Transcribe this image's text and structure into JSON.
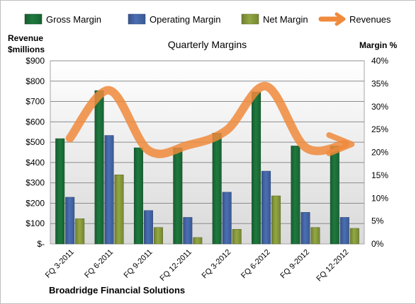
{
  "chart_data": {
    "type": "bar",
    "title": "Quarterly Margins",
    "company": "Broadridge Financial Solutions",
    "left_axis_label": [
      "Revenue",
      "$millions"
    ],
    "right_axis_label": "Margin %",
    "categories": [
      "FQ 3-2011",
      "FQ 6-2011",
      "FQ 9-2011",
      "FQ 12-2011",
      "FQ 3-2012",
      "FQ 6-2012",
      "FQ 9-2012",
      "FQ 12-2012"
    ],
    "left_ticks": [
      "$-",
      "$100",
      "$200",
      "$300",
      "$400",
      "$500",
      "$600",
      "$700",
      "$800",
      "$900"
    ],
    "right_ticks": [
      "0%",
      "5%",
      "10%",
      "15%",
      "20%",
      "25%",
      "30%",
      "35%",
      "40%"
    ],
    "left_range": [
      0,
      900
    ],
    "right_range": [
      0,
      40
    ],
    "series": [
      {
        "name": "Gross Margin",
        "color": "#1e7a3e",
        "axis": "right",
        "values": [
          23,
          33.5,
          21,
          21,
          24.2,
          33.2,
          21.4,
          21.4
        ]
      },
      {
        "name": "Operating Margin",
        "color": "#4a6fb5",
        "axis": "right",
        "values": [
          10.2,
          23.7,
          7.3,
          5.8,
          11.3,
          15.9,
          6.9,
          5.8
        ]
      },
      {
        "name": "Net Margin",
        "color": "#93a841",
        "axis": "right",
        "values": [
          5.5,
          15.1,
          3.6,
          1.4,
          3.2,
          10.5,
          3.6,
          3.4
        ]
      },
      {
        "name": "Revenues",
        "color": "#f08a3c",
        "axis": "left",
        "type": "line",
        "values": [
          520,
          755,
          460,
          485,
          560,
          775,
          475,
          490
        ]
      }
    ],
    "grid": true,
    "legend_position": "top"
  }
}
